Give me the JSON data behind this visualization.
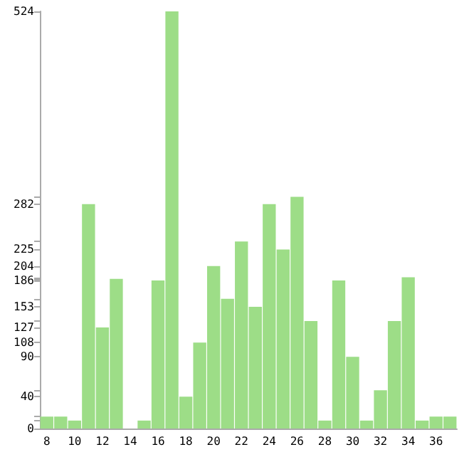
{
  "chart_data": {
    "type": "bar",
    "categories": [
      "8",
      null,
      "10",
      null,
      "12",
      null,
      "14",
      null,
      "16",
      null,
      "18",
      null,
      "20",
      null,
      "22",
      null,
      "24",
      null,
      "26",
      null,
      "28",
      null,
      "30",
      null,
      "32",
      null,
      "34",
      null,
      "36",
      null
    ],
    "values": [
      15,
      15,
      10,
      282,
      127,
      188,
      0,
      10,
      186,
      524,
      40,
      108,
      204,
      163,
      235,
      153,
      282,
      225,
      291,
      135,
      10,
      186,
      90,
      10,
      48,
      135,
      190,
      10,
      15,
      15
    ],
    "color": "#9ddd87",
    "ylim": [
      0,
      524
    ],
    "yticks": [
      0,
      {
        "value": 10,
        "label": null
      },
      {
        "value": 15,
        "label": null
      },
      40,
      {
        "value": 48,
        "label": null
      },
      90,
      108,
      127,
      {
        "value": 135,
        "label": null
      },
      153,
      {
        "value": 163,
        "label": null
      },
      186,
      {
        "value": 188,
        "label": null
      },
      {
        "value": 190,
        "label": null
      },
      204,
      225,
      {
        "value": 235,
        "label": null
      },
      282,
      {
        "value": 291,
        "label": null
      },
      524
    ],
    "grid": false
  }
}
